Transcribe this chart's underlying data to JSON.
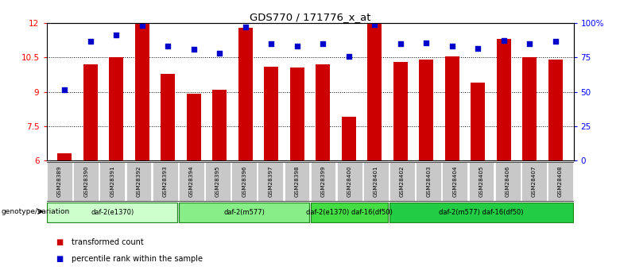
{
  "title": "GDS770 / 171776_x_at",
  "samples": [
    "GSM28389",
    "GSM28390",
    "GSM28391",
    "GSM28392",
    "GSM28393",
    "GSM28394",
    "GSM28395",
    "GSM28396",
    "GSM28397",
    "GSM28398",
    "GSM28399",
    "GSM28400",
    "GSM28401",
    "GSM28402",
    "GSM28403",
    "GSM28404",
    "GSM28405",
    "GSM28406",
    "GSM28407",
    "GSM28408"
  ],
  "bar_values": [
    6.3,
    10.2,
    10.5,
    12.0,
    9.8,
    8.9,
    9.1,
    11.8,
    10.1,
    10.05,
    10.2,
    7.9,
    12.0,
    10.3,
    10.4,
    10.55,
    9.4,
    11.3,
    10.5,
    10.4
  ],
  "percentile_values": [
    9.1,
    11.2,
    11.5,
    11.9,
    11.0,
    10.85,
    10.7,
    11.85,
    11.1,
    11.0,
    11.1,
    10.55,
    11.95,
    11.1,
    11.15,
    11.0,
    10.9,
    11.25,
    11.1,
    11.2
  ],
  "bar_color": "#cc0000",
  "square_color": "#0000cc",
  "ylim_left": [
    6,
    12
  ],
  "ylim_right": [
    0,
    100
  ],
  "yticks_left": [
    6,
    7.5,
    9,
    10.5,
    12
  ],
  "yticks_right": [
    0,
    25,
    50,
    75,
    100
  ],
  "ytick_labels_left": [
    "6",
    "7.5",
    "9",
    "10.5",
    "12"
  ],
  "ytick_labels_right": [
    "0",
    "25",
    "50",
    "75",
    "100%"
  ],
  "groups": [
    {
      "label": "daf-2(e1370)",
      "start": 0,
      "end": 5,
      "color": "#ccffcc"
    },
    {
      "label": "daf-2(m577)",
      "start": 5,
      "end": 10,
      "color": "#88ee88"
    },
    {
      "label": "daf-2(e1370) daf-16(df50)",
      "start": 10,
      "end": 13,
      "color": "#44dd44"
    },
    {
      "label": "daf-2(m577) daf-16(df50)",
      "start": 13,
      "end": 20,
      "color": "#22cc44"
    }
  ],
  "group_row_label": "genotype/variation",
  "legend_items": [
    {
      "label": "transformed count",
      "color": "#cc0000"
    },
    {
      "label": "percentile rank within the sample",
      "color": "#0000cc"
    }
  ],
  "bar_width": 0.55,
  "square_size": 18,
  "figsize": [
    7.8,
    3.45
  ],
  "dpi": 100
}
